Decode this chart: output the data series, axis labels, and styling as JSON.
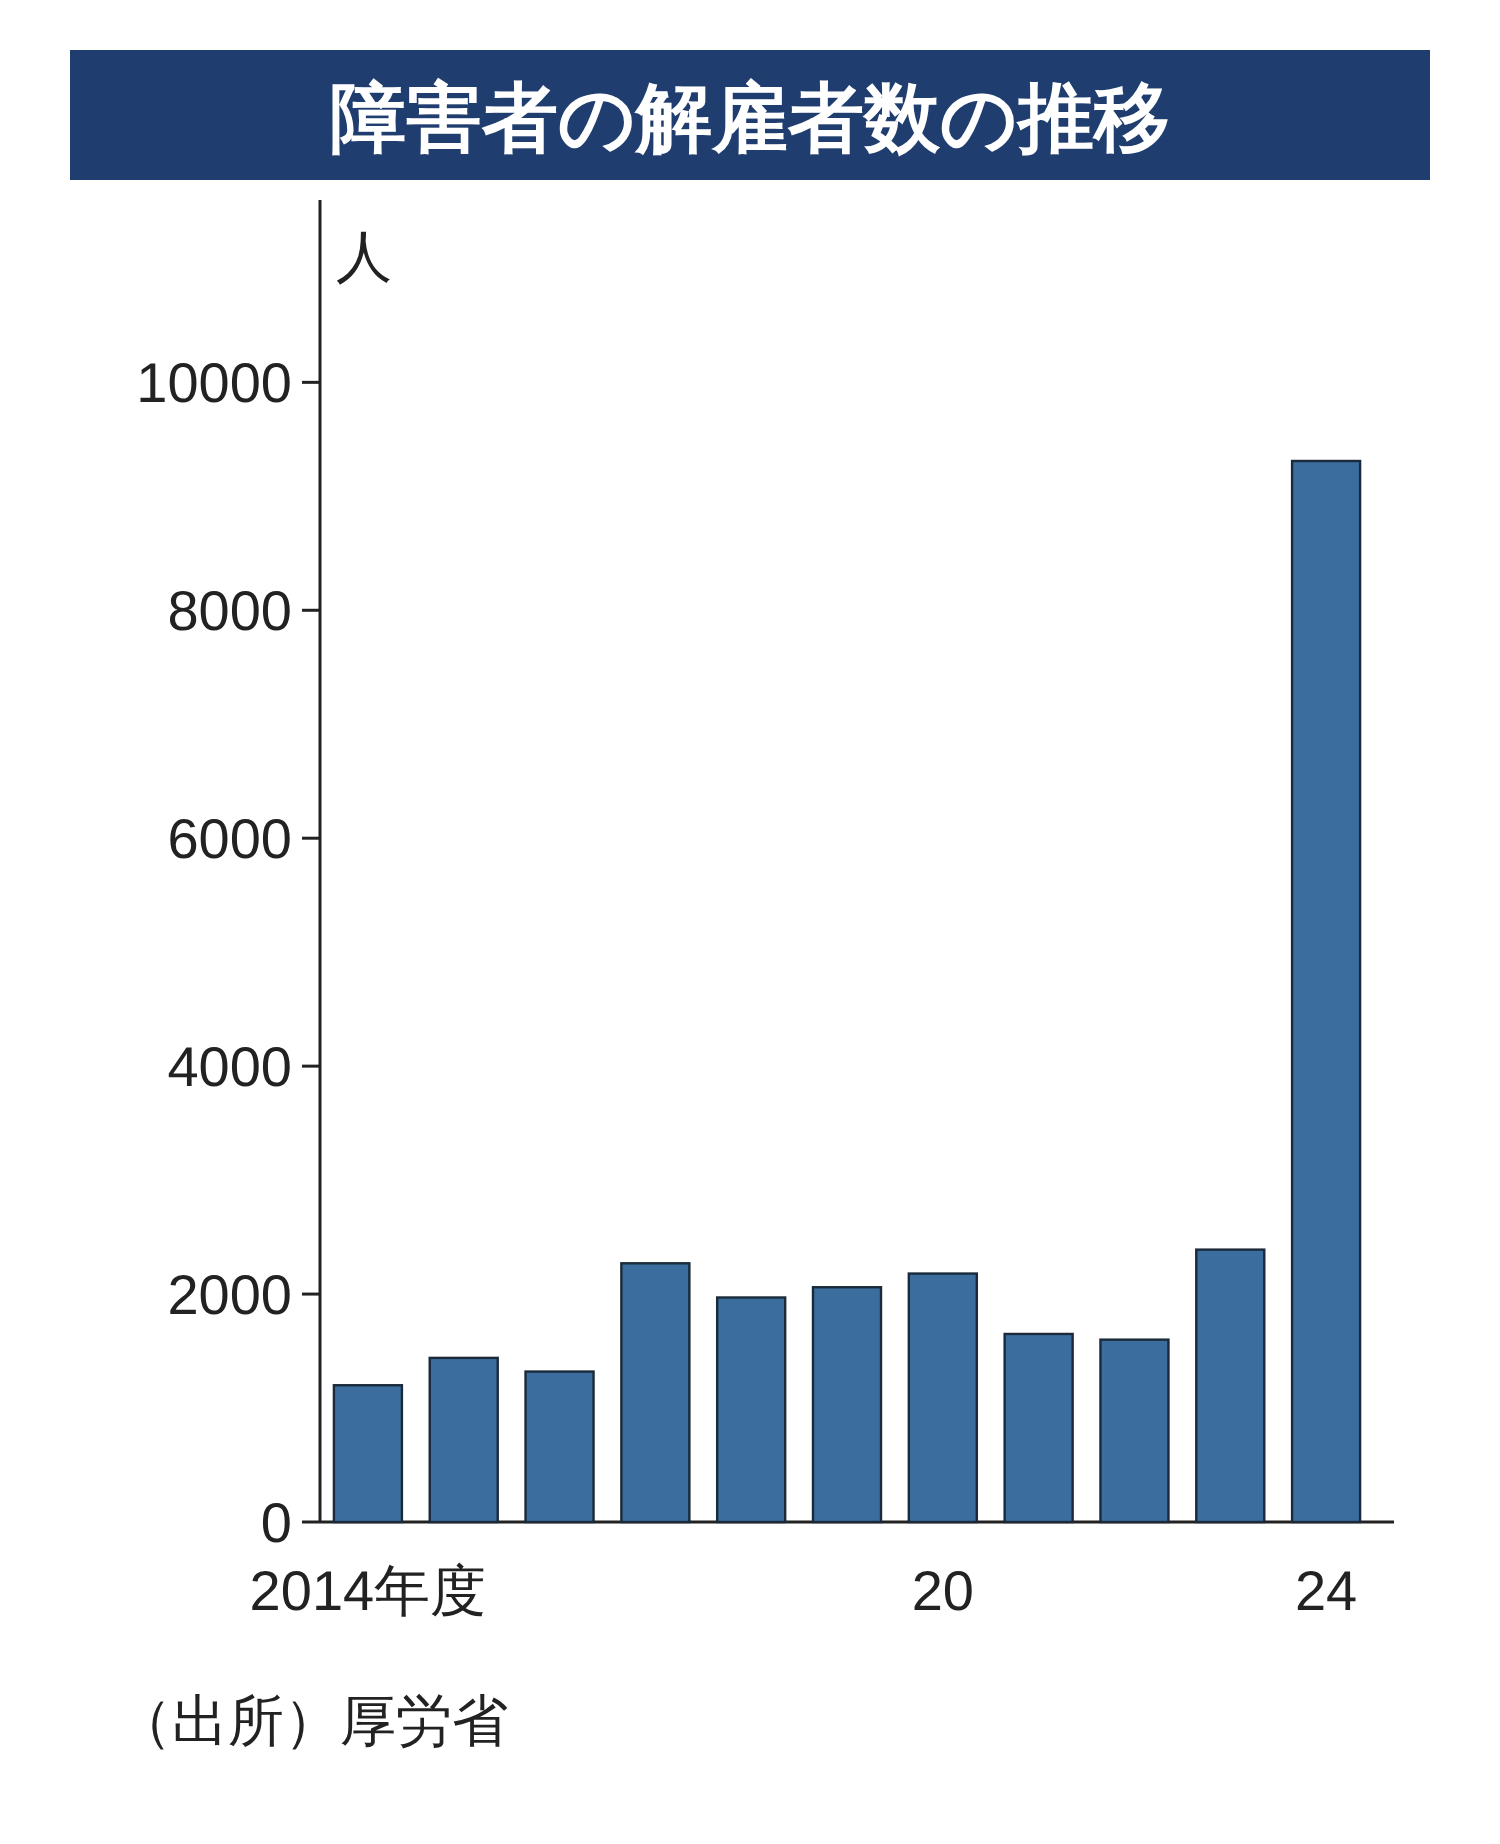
{
  "chart_data": {
    "type": "bar",
    "title": "障害者の解雇者数の推移",
    "ylabel": "人",
    "categories": [
      "2014年度",
      null,
      null,
      null,
      null,
      null,
      "20",
      null,
      null,
      null,
      "24"
    ],
    "values": [
      1200,
      1440,
      1320,
      2270,
      1970,
      2060,
      2180,
      1650,
      1600,
      2390,
      9310
    ],
    "color": "#3b6e9e",
    "ylim": [
      0,
      11600
    ],
    "yticks": [
      0,
      2000,
      4000,
      6000,
      8000,
      10000
    ],
    "grid": false,
    "annotations": [
      "（出所）厚労省"
    ]
  }
}
